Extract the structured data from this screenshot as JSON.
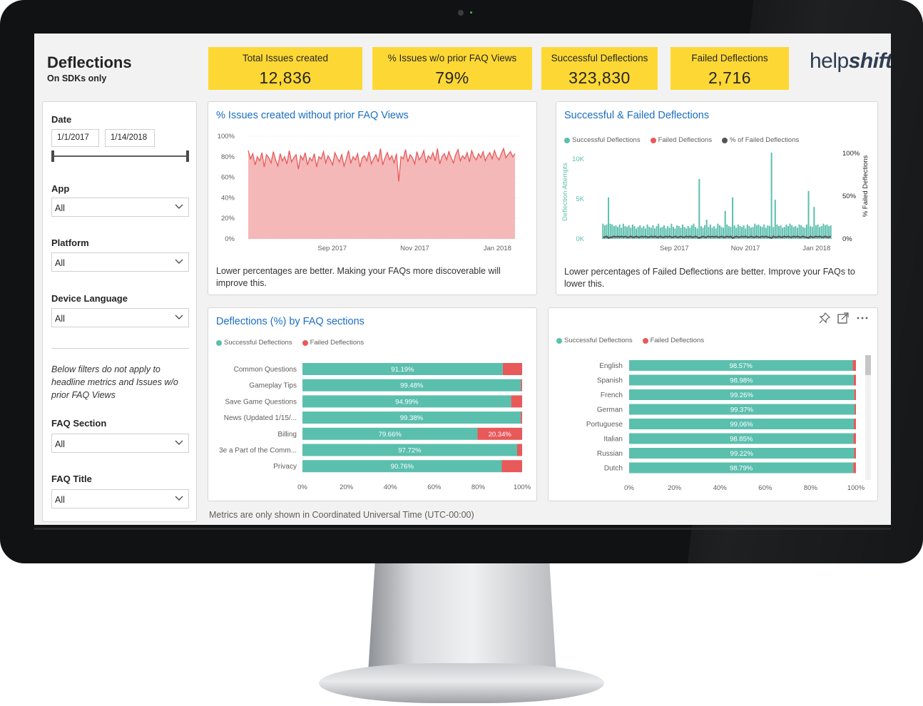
{
  "header": {
    "title": "Deflections",
    "subtitle": "On SDKs only"
  },
  "logo": {
    "part1": "help",
    "part2": "shift"
  },
  "kpis": [
    {
      "label": "Total Issues created",
      "value": "12,836"
    },
    {
      "label": "% Issues w/o prior FAQ Views",
      "value": "79%"
    },
    {
      "label": "Successful Deflections",
      "value": "323,830"
    },
    {
      "label": "Failed Deflections",
      "value": "2,716"
    }
  ],
  "filters": {
    "date": {
      "label": "Date",
      "start": "1/1/2017",
      "end": "1/14/2018"
    },
    "app": {
      "label": "App",
      "value": "All"
    },
    "platform": {
      "label": "Platform",
      "value": "All"
    },
    "device_language": {
      "label": "Device Language",
      "value": "All"
    },
    "note": "Below filters do not apply to headline metrics and Issues w/o prior FAQ Views",
    "faq_section": {
      "label": "FAQ Section",
      "value": "All"
    },
    "faq_title": {
      "label": "FAQ Title",
      "value": "All"
    }
  },
  "cards": {
    "issues_card": {
      "title": "% Issues created without prior FAQ Views",
      "description": "Lower percentages are better. Making your FAQs more discoverable will improve this."
    },
    "deflections_card": {
      "title": "Successful & Failed Deflections",
      "description": "Lower percentages of Failed Deflections are better. Improve your FAQs to lower this."
    },
    "faq_sections_card": {
      "title": "Deflections (%) by FAQ sections"
    },
    "language_card": {
      "title": ""
    }
  },
  "footnote": "Metrics are only shown in Coordinated Universal Time (UTC-00:00)",
  "colors": {
    "successful": "#5bbfae",
    "failed": "#e8595a",
    "pct_failed": "#555555",
    "kpi": "#fdd835",
    "title_blue": "#1b6ec2"
  },
  "icons": [
    "pin-icon",
    "focus-mode-icon",
    "more-options-icon",
    "chevron-down-icon"
  ],
  "chart_data": [
    {
      "id": "issues_pct",
      "type": "area",
      "title": "% Issues created without prior FAQ Views",
      "x_ticks": [
        "Sep 2017",
        "Nov 2017",
        "Jan 2018"
      ],
      "y_ticks": [
        "0%",
        "20%",
        "40%",
        "60%",
        "80%",
        "100%"
      ],
      "ylim": [
        0,
        100
      ],
      "x_range": [
        "2017-07-01",
        "2018-01-14"
      ],
      "color": "#e8595a",
      "fill": "#f4b8b8",
      "values": [
        86,
        78,
        83,
        72,
        80,
        76,
        84,
        70,
        82,
        79,
        74,
        85,
        77,
        71,
        83,
        76,
        80,
        73,
        86,
        75,
        79,
        82,
        68,
        81,
        77,
        84,
        72,
        79,
        76,
        83,
        70,
        80,
        78,
        85,
        74,
        81,
        77,
        72,
        84,
        79,
        75,
        82,
        71,
        78,
        86,
        74,
        80,
        77,
        83,
        70,
        79,
        81,
        76,
        85,
        73,
        78,
        82,
        75,
        88,
        72,
        79,
        84,
        77,
        81,
        74,
        83,
        56,
        80,
        78,
        87,
        75,
        82,
        79,
        73,
        85,
        77,
        80,
        86,
        74,
        81,
        78,
        84,
        76,
        88,
        73,
        80,
        83,
        77,
        85,
        79,
        74,
        82,
        87,
        76,
        81,
        78,
        84,
        75,
        86,
        80,
        77,
        83,
        79,
        85,
        76,
        81,
        84,
        78,
        86,
        80,
        77,
        83,
        88,
        79,
        82,
        85,
        80,
        83
      ]
    },
    {
      "id": "deflections_time",
      "type": "bar",
      "title": "Successful & Failed Deflections",
      "legend": [
        "Successful Deflections",
        "Failed Deflections",
        "% of Failed Deflections"
      ],
      "x_ticks": [
        "Sep 2017",
        "Nov 2017",
        "Jan 2018"
      ],
      "y_ticks_left": [
        "0K",
        "5K",
        "10K"
      ],
      "y_ticks_right": [
        "0%",
        "50%",
        "100%"
      ],
      "ylabel_left": "Deflection Attempts",
      "ylabel_right": "% Failed Deflections",
      "ylim_left": [
        0,
        10000
      ],
      "ylim_right": [
        0,
        100
      ],
      "x_range": [
        "2017-07-01",
        "2018-01-14"
      ],
      "successful_values": [
        1900,
        1700,
        1800,
        5200,
        1900,
        1800,
        1600,
        1700,
        1500,
        1800,
        1400,
        1900,
        1600,
        1500,
        1700,
        1400,
        1800,
        1600,
        1300,
        1500,
        1700,
        1400,
        1600,
        1300,
        1800,
        1500,
        1400,
        1700,
        1300,
        1600,
        1900,
        1400,
        1500,
        1700,
        1300,
        1600,
        1400,
        1900,
        1500,
        1300,
        1700,
        1600,
        1400,
        1800,
        1500,
        1300,
        1600,
        1400,
        1700,
        1900,
        1500,
        1300,
        7500,
        1600,
        1400,
        1700,
        2400,
        1500,
        1800,
        1400,
        1600,
        1300,
        1900,
        1700,
        1500,
        1400,
        3500,
        1800,
        1600,
        1500,
        5200,
        1700,
        1400,
        1800,
        1600,
        1500,
        1700,
        1300,
        1800,
        1600,
        1400,
        1500,
        1900,
        1700,
        1800,
        1600,
        1500,
        1800,
        1400,
        1700,
        1600,
        10800,
        1500,
        4900,
        1800,
        1600,
        1700,
        1400,
        1500,
        1800,
        1600,
        1900,
        1700,
        1500,
        1600,
        1400,
        1800,
        1700,
        1500,
        1400,
        1800,
        6000,
        1600,
        1500,
        4000,
        1700,
        1800,
        1500,
        1600,
        1900,
        1700,
        1800,
        1600,
        1700
      ],
      "pct_failed_values": [
        2,
        2,
        3,
        1,
        2,
        2,
        3,
        2,
        3,
        2,
        3,
        2,
        3,
        2,
        2,
        3,
        2,
        2,
        3,
        2,
        2,
        3,
        2,
        3,
        2,
        2,
        3,
        2,
        3,
        2,
        2,
        3,
        2,
        2,
        3,
        2,
        3,
        2,
        2,
        3,
        2,
        2,
        3,
        2,
        2,
        3,
        2,
        3,
        2,
        2,
        3,
        2,
        1,
        2,
        3,
        2,
        2,
        3,
        2,
        3,
        2,
        3,
        2,
        2,
        3,
        2,
        2,
        3,
        2,
        3,
        1,
        2,
        3,
        2,
        2,
        3,
        2,
        3,
        2,
        2,
        3,
        2,
        2,
        3,
        2,
        2,
        3,
        2,
        3,
        2,
        2,
        1,
        3,
        2,
        2,
        3,
        2,
        2,
        3,
        2,
        3,
        2,
        2,
        3,
        2,
        3,
        2,
        2,
        3,
        2,
        2,
        1,
        3,
        2,
        2,
        3,
        2,
        3,
        2,
        2,
        3,
        2,
        2,
        3
      ]
    },
    {
      "id": "faq_sections",
      "type": "bar",
      "orientation": "horizontal-stacked-100",
      "title": "Deflections (%) by FAQ sections",
      "legend": [
        "Successful Deflections",
        "Failed Deflections"
      ],
      "categories": [
        "Common Questions",
        "Gameplay Tips",
        "Save Game Questions",
        "News (Updated 1/15/...",
        "Billing",
        "3e a Part of the Comm...",
        "Privacy"
      ],
      "series": [
        {
          "name": "Successful Deflections",
          "values": [
            91.19,
            99.48,
            94.99,
            99.38,
            79.66,
            97.72,
            90.76
          ],
          "labels": [
            "91.19%",
            "99.48%",
            "94.99%",
            "99.38%",
            "79.66%",
            "97.72%",
            "90.76%"
          ]
        },
        {
          "name": "Failed Deflections",
          "values": [
            8.81,
            0.52,
            5.01,
            0.62,
            20.34,
            2.28,
            9.24
          ],
          "labels": [
            "",
            "",
            "",
            "",
            "20.34%",
            "",
            ""
          ]
        }
      ],
      "x_ticks": [
        "0%",
        "20%",
        "40%",
        "60%",
        "80%",
        "100%"
      ],
      "xlim": [
        0,
        100
      ]
    },
    {
      "id": "languages",
      "type": "bar",
      "orientation": "horizontal-stacked-100",
      "legend": [
        "Successful Deflections",
        "Failed Deflections"
      ],
      "categories": [
        "English",
        "Spanish",
        "French",
        "German",
        "Portuguese",
        "Italian",
        "Russian",
        "Dutch"
      ],
      "series": [
        {
          "name": "Successful Deflections",
          "values": [
            98.57,
            98.98,
            99.26,
            99.37,
            99.06,
            98.85,
            99.22,
            98.79
          ],
          "labels": [
            "98.57%",
            "98.98%",
            "99.26%",
            "99.37%",
            "99.06%",
            "98.85%",
            "99.22%",
            "98.79%"
          ]
        },
        {
          "name": "Failed Deflections",
          "values": [
            1.43,
            1.02,
            0.74,
            0.63,
            0.94,
            1.15,
            0.78,
            1.21
          ],
          "labels": [
            "",
            "",
            "",
            "",
            "",
            "",
            "",
            ""
          ]
        }
      ],
      "x_ticks": [
        "0%",
        "20%",
        "40%",
        "60%",
        "80%",
        "100%"
      ],
      "xlim": [
        0,
        100
      ]
    }
  ]
}
